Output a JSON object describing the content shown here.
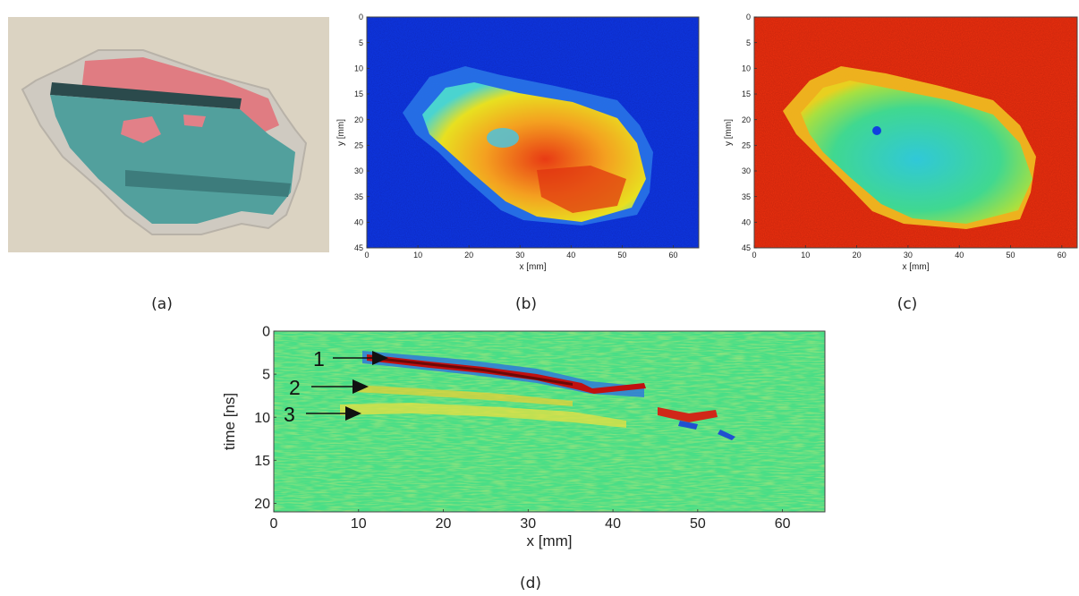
{
  "panels": {
    "a": {
      "label": "(a)"
    },
    "b": {
      "label": "(b)",
      "xlabel": "x [mm]",
      "ylabel": "y [mm]",
      "xticks": [
        "0",
        "10",
        "20",
        "30",
        "40",
        "50",
        "60"
      ],
      "yticks": [
        "0",
        "5",
        "10",
        "15",
        "20",
        "25",
        "30",
        "35",
        "40",
        "45"
      ]
    },
    "c": {
      "label": "(c)",
      "xlabel": "x [mm]",
      "ylabel": "y [mm]",
      "xticks": [
        "0",
        "10",
        "20",
        "30",
        "40",
        "50",
        "60"
      ],
      "yticks": [
        "0",
        "5",
        "10",
        "15",
        "20",
        "25",
        "30",
        "35",
        "40",
        "45"
      ]
    },
    "d": {
      "label": "(d)",
      "xlabel": "x [mm]",
      "ylabel": "time [ns]",
      "xticks": [
        "0",
        "10",
        "20",
        "30",
        "40",
        "50",
        "60"
      ],
      "yticks": [
        "0",
        "5",
        "10",
        "15",
        "20"
      ],
      "arrows": [
        "1",
        "2",
        "3"
      ]
    }
  },
  "colors": {
    "cmap_blue": "#1030e0",
    "cmap_green": "#3ce07a",
    "cmap_yellow": "#f0e020",
    "cmap_red": "#f02810",
    "cmap_darkred": "#8a0a0a",
    "photo_bg": "#ddd6c6",
    "photo_teal": "#4f9a98",
    "photo_pink": "#e3727a"
  }
}
